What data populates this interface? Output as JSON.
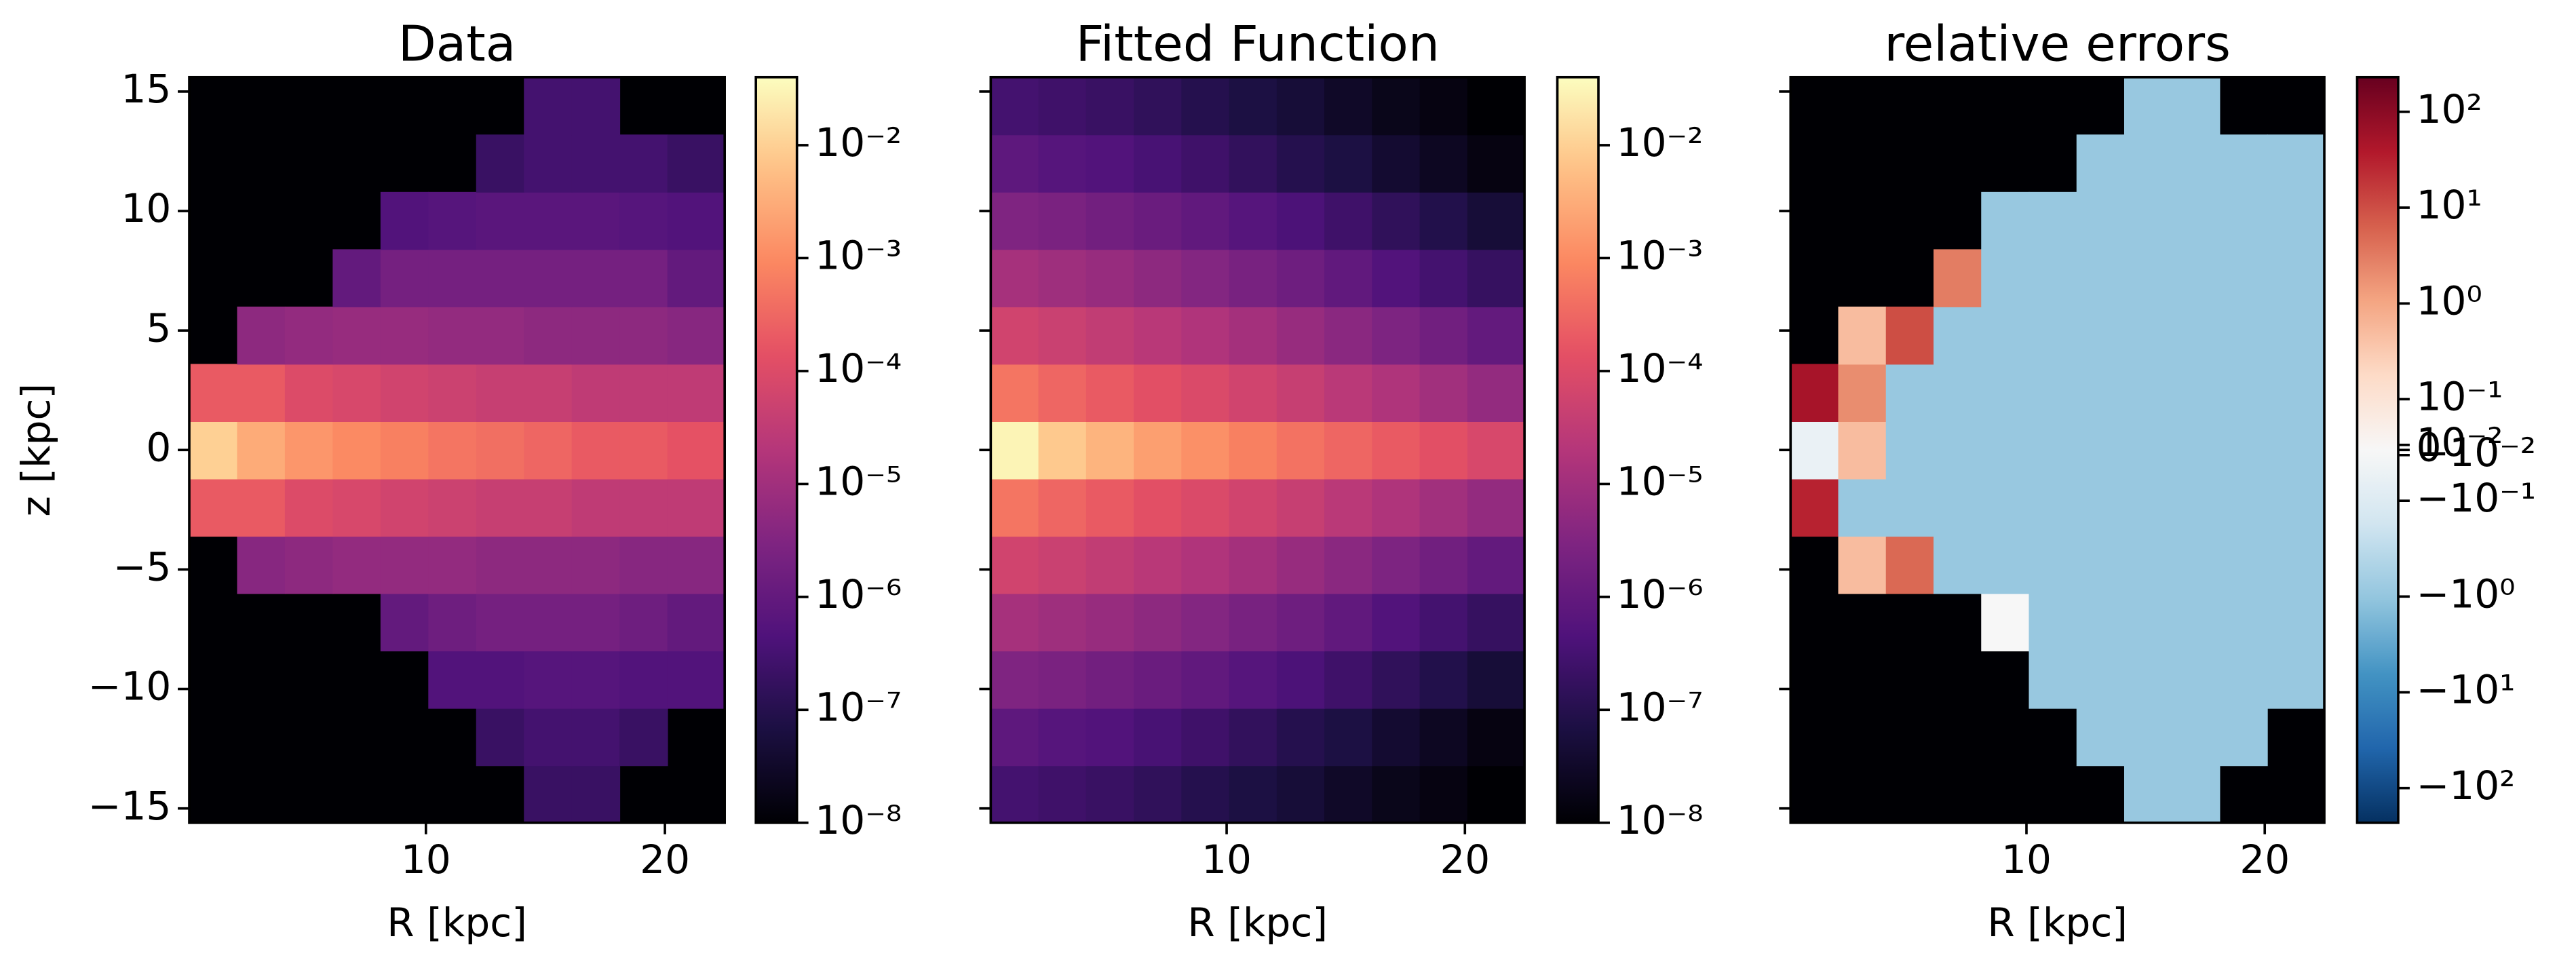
{
  "chart_data": [
    {
      "type": "heatmap",
      "title": "Data",
      "xlabel": "R [kpc]",
      "ylabel": "z [kpc]",
      "xlim": [
        0.1,
        22.5
      ],
      "ylim": [
        -15.6,
        15.6
      ],
      "xticks": [
        10,
        20
      ],
      "yticks": [
        {
          "value": -15,
          "label": "−15"
        },
        {
          "value": -10,
          "label": "−10"
        },
        {
          "value": -5,
          "label": "−5"
        },
        0,
        5,
        10,
        15
      ],
      "ytick_labels": true,
      "x_edges": [
        0.1,
        2.1,
        4.1,
        6.1,
        8.1,
        10.1,
        12.1,
        14.1,
        16.1,
        18.1,
        20.1,
        22.5
      ],
      "y_edges": [
        -15.6,
        -13.2,
        -10.8,
        -8.4,
        -6,
        -3.6,
        -1.2,
        1.2,
        3.6,
        6,
        8.4,
        10.8,
        13.2,
        15.6
      ],
      "values": [
        [
          null,
          null,
          null,
          null,
          null,
          null,
          null,
          2e-07,
          2e-07,
          null,
          null
        ],
        [
          null,
          null,
          null,
          null,
          null,
          null,
          2e-07,
          3e-07,
          3e-07,
          2e-07,
          null
        ],
        [
          null,
          null,
          null,
          null,
          null,
          5e-07,
          5e-07,
          6e-07,
          6e-07,
          5e-07,
          5e-07
        ],
        [
          null,
          null,
          null,
          null,
          1e-06,
          1.5e-06,
          2e-06,
          2e-06,
          2e-06,
          1.5e-06,
          1e-06
        ],
        [
          null,
          4e-06,
          5e-06,
          6e-06,
          6e-06,
          6e-06,
          5e-06,
          5e-06,
          5e-06,
          4e-06,
          4e-06
        ],
        [
          0.0002,
          0.0002,
          0.0001,
          8e-05,
          6e-05,
          5e-05,
          4e-05,
          4e-05,
          3e-05,
          3e-05,
          3e-05
        ],
        [
          0.01,
          0.003,
          0.0015,
          0.001,
          0.0007,
          0.0005,
          0.0004,
          0.0003,
          0.0002,
          0.0002,
          0.00015
        ],
        [
          0.0002,
          0.0002,
          0.0001,
          8e-05,
          6e-05,
          5e-05,
          4e-05,
          4e-05,
          3e-05,
          3e-05,
          3e-05
        ],
        [
          null,
          5e-06,
          6e-06,
          7e-06,
          7e-06,
          6e-06,
          6e-06,
          5e-06,
          5e-06,
          5e-06,
          4e-06
        ],
        [
          null,
          null,
          null,
          1e-06,
          2e-06,
          2e-06,
          2e-06,
          2e-06,
          2e-06,
          2e-06,
          1e-06
        ],
        [
          null,
          null,
          null,
          null,
          5e-07,
          6e-07,
          7e-07,
          7e-07,
          7e-07,
          6e-07,
          5e-07
        ],
        [
          null,
          null,
          null,
          null,
          null,
          null,
          2e-07,
          3e-07,
          3e-07,
          3e-07,
          2e-07
        ],
        [
          null,
          null,
          null,
          null,
          null,
          null,
          null,
          3e-07,
          3e-07,
          null,
          null
        ]
      ],
      "colormap": "magma",
      "colorbar": {
        "scale": "log",
        "lim": [
          1e-08,
          0.04
        ],
        "ticks": [
          {
            "value": 1e-08,
            "label": "10⁻⁸"
          },
          {
            "value": 1e-07,
            "label": "10⁻⁷"
          },
          {
            "value": 1e-06,
            "label": "10⁻⁶"
          },
          {
            "value": 1e-05,
            "label": "10⁻⁵"
          },
          {
            "value": 0.0001,
            "label": "10⁻⁴"
          },
          {
            "value": 0.001,
            "label": "10⁻³"
          },
          {
            "value": 0.01,
            "label": "10⁻²"
          }
        ]
      }
    },
    {
      "type": "heatmap",
      "title": "Fitted Function",
      "xlabel": "R [kpc]",
      "xlim": [
        0.1,
        22.5
      ],
      "ylim": [
        -15.6,
        15.6
      ],
      "xticks": [
        10,
        20
      ],
      "yticks": [
        -15,
        -10,
        -5,
        0,
        5,
        10,
        15
      ],
      "ytick_labels": false,
      "x_edges": [
        0.1,
        2.1,
        4.1,
        6.1,
        8.1,
        10.1,
        12.1,
        14.1,
        16.1,
        18.1,
        20.1,
        22.5
      ],
      "y_edges": [
        -15.6,
        -13.2,
        -10.8,
        -8.4,
        -6,
        -3.6,
        -1.2,
        1.2,
        3.6,
        6,
        8.4,
        10.8,
        13.2,
        15.6
      ],
      "values": [
        [
          3e-07,
          2.5e-07,
          2e-07,
          1.5e-07,
          1e-07,
          7e-08,
          5e-08,
          3e-08,
          2e-08,
          1.5e-08,
          1e-08
        ],
        [
          8e-07,
          6e-07,
          5e-07,
          3.5e-07,
          2.5e-07,
          1.6e-07,
          1e-07,
          7e-08,
          4e-08,
          2.5e-08,
          1.5e-08
        ],
        [
          3e-06,
          2.4e-06,
          1.8e-06,
          1.3e-06,
          9e-07,
          6e-07,
          4e-07,
          2.5e-07,
          1.5e-07,
          9e-08,
          5e-08
        ],
        [
          1.2e-05,
          9e-06,
          7e-06,
          5e-06,
          3.5e-06,
          2.3e-06,
          1.5e-06,
          9e-07,
          5e-07,
          3e-07,
          1.8e-07
        ],
        [
          6e-05,
          4.5e-05,
          3.3e-05,
          2.4e-05,
          1.7e-05,
          1.1e-05,
          7e-06,
          4.5e-06,
          2.8e-06,
          1.7e-06,
          1e-06
        ],
        [
          0.0005,
          0.0003,
          0.0002,
          0.00013,
          9e-05,
          6e-05,
          4e-05,
          2.5e-05,
          1.6e-05,
          1e-05,
          6e-06
        ],
        [
          0.03,
          0.008,
          0.004,
          0.002,
          0.0012,
          0.0007,
          0.00045,
          0.0003,
          0.0002,
          0.00013,
          8e-05
        ],
        [
          0.0005,
          0.0003,
          0.0002,
          0.00013,
          9e-05,
          6e-05,
          4e-05,
          2.5e-05,
          1.6e-05,
          1e-05,
          6e-06
        ],
        [
          6e-05,
          4.5e-05,
          3.3e-05,
          2.4e-05,
          1.7e-05,
          1.1e-05,
          7e-06,
          4.5e-06,
          2.8e-06,
          1.7e-06,
          1e-06
        ],
        [
          1.2e-05,
          9e-06,
          7e-06,
          5e-06,
          3.5e-06,
          2.3e-06,
          1.5e-06,
          9e-07,
          5e-07,
          3e-07,
          1.8e-07
        ],
        [
          3e-06,
          2.4e-06,
          1.8e-06,
          1.3e-06,
          9e-07,
          6e-07,
          4e-07,
          2.5e-07,
          1.5e-07,
          9e-08,
          5e-08
        ],
        [
          8e-07,
          6e-07,
          5e-07,
          3.5e-07,
          2.5e-07,
          1.6e-07,
          1e-07,
          7e-08,
          4e-08,
          2.5e-08,
          1.5e-08
        ],
        [
          3e-07,
          2.5e-07,
          2e-07,
          1.5e-07,
          1e-07,
          7e-08,
          5e-08,
          3e-08,
          2e-08,
          1.5e-08,
          1e-08
        ]
      ],
      "colormap": "magma",
      "colorbar": {
        "scale": "log",
        "lim": [
          1e-08,
          0.04
        ],
        "ticks": [
          {
            "value": 1e-08,
            "label": "10⁻⁸"
          },
          {
            "value": 1e-07,
            "label": "10⁻⁷"
          },
          {
            "value": 1e-06,
            "label": "10⁻⁶"
          },
          {
            "value": 1e-05,
            "label": "10⁻⁵"
          },
          {
            "value": 0.0001,
            "label": "10⁻⁴"
          },
          {
            "value": 0.001,
            "label": "10⁻³"
          },
          {
            "value": 0.01,
            "label": "10⁻²"
          }
        ]
      }
    },
    {
      "type": "heatmap",
      "title": "relative errors",
      "xlabel": "R [kpc]",
      "xlim": [
        0.1,
        22.5
      ],
      "ylim": [
        -15.6,
        15.6
      ],
      "xticks": [
        10,
        20
      ],
      "yticks": [
        -15,
        -10,
        -5,
        0,
        5,
        10,
        15
      ],
      "ytick_labels": false,
      "x_edges": [
        0.1,
        2.1,
        4.1,
        6.1,
        8.1,
        10.1,
        12.1,
        14.1,
        16.1,
        18.1,
        20.1,
        22.5
      ],
      "y_edges": [
        -15.6,
        -13.2,
        -10.8,
        -8.4,
        -6,
        -3.6,
        -1.2,
        1.2,
        3.6,
        6,
        8.4,
        10.8,
        13.2,
        15.6
      ],
      "values": [
        [
          null,
          null,
          null,
          null,
          null,
          null,
          null,
          -0.9,
          -0.9,
          null,
          null
        ],
        [
          null,
          null,
          null,
          null,
          null,
          null,
          -0.9,
          -0.9,
          -0.9,
          -0.9,
          null
        ],
        [
          null,
          null,
          null,
          null,
          null,
          -0.9,
          -0.9,
          -0.9,
          -0.9,
          -0.9,
          -0.9
        ],
        [
          null,
          null,
          null,
          null,
          0,
          -0.9,
          -0.9,
          -0.9,
          -0.9,
          -0.9,
          -0.9
        ],
        [
          null,
          0.5,
          5,
          -0.9,
          -0.9,
          -0.9,
          -0.9,
          -0.9,
          -0.9,
          -0.9,
          -0.9
        ],
        [
          30,
          -0.9,
          -0.9,
          -0.9,
          -0.9,
          -0.9,
          -0.9,
          -0.9,
          -0.9,
          -0.9,
          -0.9
        ],
        [
          -0.05,
          0.5,
          -0.9,
          -0.9,
          -0.9,
          -0.9,
          -0.9,
          -0.9,
          -0.9,
          -0.9,
          -0.9
        ],
        [
          50,
          2,
          -0.9,
          -0.9,
          -0.9,
          -0.9,
          -0.9,
          -0.9,
          -0.9,
          -0.9,
          -0.9
        ],
        [
          null,
          0.5,
          10,
          -0.9,
          -0.9,
          -0.9,
          -0.9,
          -0.9,
          -0.9,
          -0.9,
          -0.9
        ],
        [
          null,
          null,
          null,
          3,
          -0.9,
          -0.9,
          -0.9,
          -0.9,
          -0.9,
          -0.9,
          -0.9
        ],
        [
          null,
          null,
          null,
          null,
          -0.9,
          -0.9,
          -0.9,
          -0.9,
          -0.9,
          -0.9,
          -0.9
        ],
        [
          null,
          null,
          null,
          null,
          null,
          null,
          -0.9,
          -0.9,
          -0.9,
          -0.9,
          -0.9
        ],
        [
          null,
          null,
          null,
          null,
          null,
          null,
          null,
          -0.9,
          -0.9,
          null,
          null
        ]
      ],
      "colormap": "RdBu_r",
      "colorbar": {
        "scale": "symlog",
        "linthresh": 0.1,
        "linscale": 0.53,
        "lim": [
          -230,
          230
        ],
        "ticks": [
          {
            "value": -100,
            "label": "−10²"
          },
          {
            "value": -10,
            "label": "−10¹"
          },
          {
            "value": -1,
            "label": "−10⁰"
          },
          {
            "value": -0.1,
            "label": "−10⁻¹"
          },
          {
            "value": -0.01,
            "label": "−10⁻²"
          },
          0,
          {
            "value": 0.01,
            "label": "10⁻²"
          },
          {
            "value": 0.1,
            "label": "10⁻¹"
          },
          {
            "value": 1,
            "label": "10⁰"
          },
          {
            "value": 10,
            "label": "10¹"
          },
          {
            "value": 100,
            "label": "10²"
          }
        ]
      }
    }
  ]
}
